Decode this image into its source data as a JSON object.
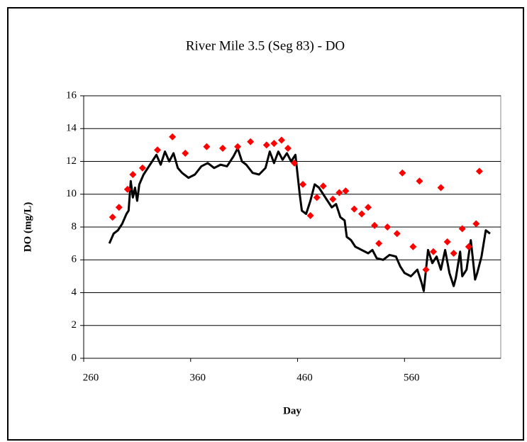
{
  "chart_data": {
    "type": "combo",
    "title": "River Mile 3.5 (Seg 83) - DO",
    "x_label": "Day",
    "y_label": "DO (mg/L)",
    "xlim": [
      260,
      650
    ],
    "xticks": [
      260,
      360,
      460,
      560
    ],
    "ylim": [
      0,
      16
    ],
    "yticks": [
      0,
      2,
      4,
      6,
      8,
      10,
      12,
      14,
      16
    ],
    "grid": true,
    "series": [
      {
        "type": "line",
        "color": "#000000",
        "x": [
          284,
          288,
          292,
          296,
          300,
          302,
          304,
          306,
          308,
          310,
          312,
          316,
          320,
          324,
          328,
          332,
          336,
          340,
          344,
          348,
          352,
          358,
          364,
          370,
          376,
          382,
          388,
          394,
          400,
          404,
          408,
          412,
          418,
          424,
          430,
          434,
          438,
          442,
          446,
          450,
          454,
          458,
          460,
          462,
          464,
          468,
          472,
          476,
          480,
          484,
          488,
          492,
          496,
          500,
          504,
          506,
          510,
          514,
          520,
          526,
          530,
          534,
          540,
          546,
          552,
          556,
          560,
          566,
          572,
          576,
          578,
          582,
          586,
          590,
          594,
          598,
          602,
          606,
          608,
          612,
          614,
          618,
          622,
          626,
          628,
          632,
          636,
          640
        ],
        "values": [
          7.0,
          7.6,
          7.8,
          8.2,
          8.8,
          9.0,
          10.8,
          9.8,
          10.4,
          9.6,
          10.6,
          11.2,
          11.6,
          12.0,
          12.4,
          11.8,
          12.6,
          12.0,
          12.5,
          11.6,
          11.3,
          11.0,
          11.2,
          11.7,
          11.9,
          11.6,
          11.8,
          11.7,
          12.3,
          12.8,
          12.0,
          11.8,
          11.3,
          11.2,
          11.6,
          12.6,
          11.9,
          12.6,
          12.1,
          12.5,
          12.0,
          12.4,
          11.2,
          10.0,
          9.0,
          8.8,
          9.6,
          10.6,
          10.4,
          10.0,
          9.6,
          9.2,
          9.4,
          8.6,
          8.4,
          7.4,
          7.2,
          6.8,
          6.6,
          6.4,
          6.6,
          6.1,
          6.0,
          6.3,
          6.2,
          5.6,
          5.2,
          5.0,
          5.4,
          4.6,
          4.1,
          6.6,
          5.8,
          6.2,
          5.4,
          6.6,
          5.2,
          4.4,
          4.9,
          6.5,
          5.0,
          5.4,
          7.2,
          4.8,
          5.2,
          6.2,
          7.8,
          7.6
        ]
      },
      {
        "type": "scatter",
        "color": "#ff0000",
        "x": [
          287,
          293,
          301,
          306,
          315,
          329,
          343,
          355,
          375,
          390,
          404,
          416,
          431,
          438,
          445,
          451,
          457,
          465,
          472,
          478,
          484,
          493,
          499,
          505,
          513,
          520,
          526,
          532,
          536,
          544,
          553,
          558,
          568,
          574,
          580,
          587,
          594,
          600,
          606,
          614,
          620,
          627,
          630
        ],
        "values": [
          8.6,
          9.2,
          10.3,
          11.2,
          11.6,
          12.7,
          13.5,
          12.5,
          12.9,
          12.8,
          12.9,
          13.2,
          13.0,
          13.1,
          13.3,
          12.8,
          11.9,
          10.6,
          8.7,
          9.8,
          10.5,
          9.7,
          10.1,
          10.2,
          9.1,
          8.8,
          9.2,
          8.1,
          7.0,
          8.0,
          7.6,
          11.3,
          6.8,
          10.8,
          5.4,
          6.5,
          10.4,
          7.1,
          6.4,
          7.9,
          6.8,
          8.2,
          11.4
        ]
      }
    ]
  }
}
